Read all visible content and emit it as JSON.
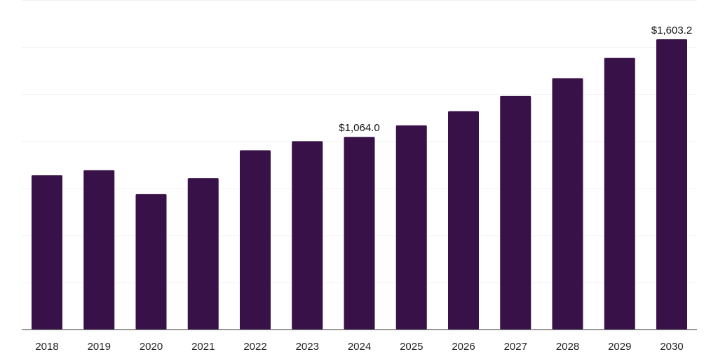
{
  "chart_data": {
    "type": "bar",
    "categories": [
      "2018",
      "2019",
      "2020",
      "2021",
      "2022",
      "2023",
      "2024",
      "2025",
      "2026",
      "2027",
      "2028",
      "2029",
      "2030"
    ],
    "values": [
      852,
      880,
      748,
      836,
      990,
      1040,
      1064.0,
      1128,
      1206,
      1290,
      1388,
      1500,
      1603.2
    ],
    "data_labels": [
      {
        "category": "2024",
        "text": "$1,064.0"
      },
      {
        "category": "2030",
        "text": "$1,603.2"
      }
    ],
    "title": "",
    "xlabel": "",
    "ylabel": "",
    "ylim": [
      0,
      1820
    ],
    "grid": true,
    "bar_color": "#371147",
    "legend": "none"
  }
}
